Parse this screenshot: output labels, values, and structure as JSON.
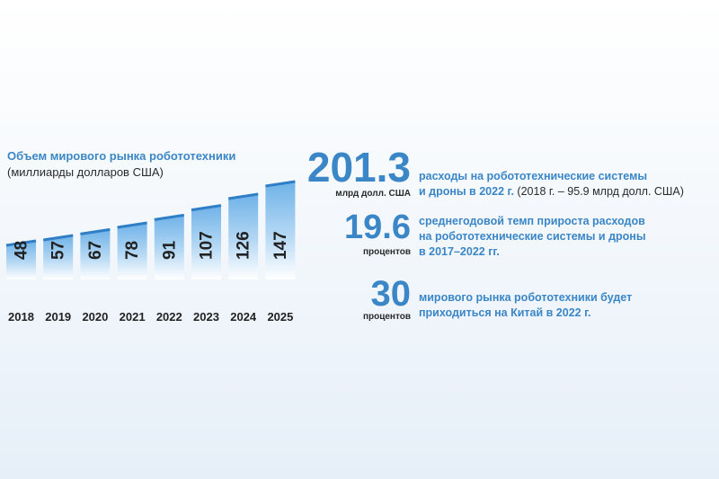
{
  "chart_data": {
    "type": "bar",
    "title": "Объем мирового рынка робототехники",
    "subtitle": "(миллиарды долларов США)",
    "categories": [
      "2018",
      "2019",
      "2020",
      "2021",
      "2022",
      "2023",
      "2024",
      "2025"
    ],
    "values": [
      48,
      57,
      67,
      78,
      91,
      107,
      126,
      147
    ],
    "colors": {
      "bar_top": "#6fb2e8",
      "bar_bottom": "#ffffff",
      "bar_edge": "#2f7fc6",
      "label": "#222222"
    }
  },
  "stats": [
    {
      "value": "201.3",
      "unit": "млрд долл. США",
      "line1": "расходы на робототехнические системы",
      "line2": "и дроны в 2022 г.",
      "note": "(2018 г. – 95.9 млрд долл. США)"
    },
    {
      "value": "19.6",
      "unit": "процентов",
      "line1": "среднегодовой темп прироста расходов",
      "line2": "на робототехнические системы и дроны",
      "line3": "в 2017–2022 гг."
    },
    {
      "value": "30",
      "unit": "процентов",
      "line1": "мирового рынка робототехники будет",
      "line2": "приходиться на Китай в 2022 г."
    }
  ]
}
